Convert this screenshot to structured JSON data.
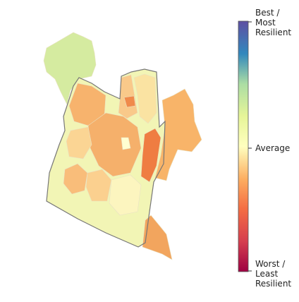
{
  "colorbar": {
    "top_label": [
      "Best /",
      "Most",
      "Resilient"
    ],
    "middle_label": [
      "Average"
    ],
    "bottom_label": [
      "Worst /",
      "Least",
      "Resilient"
    ]
  }
}
